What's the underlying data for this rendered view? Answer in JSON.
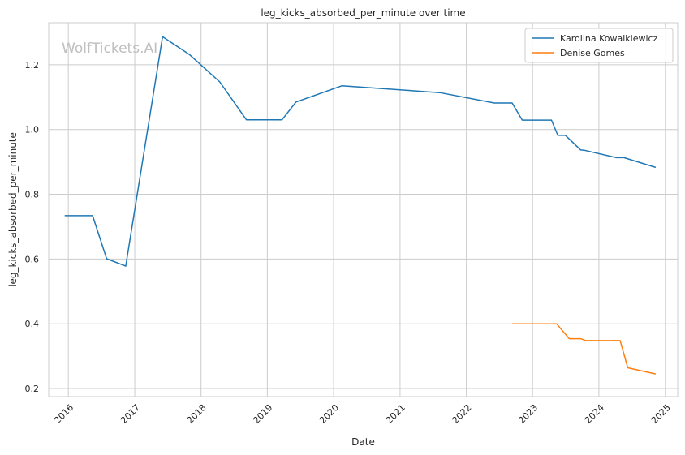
{
  "chart_data": {
    "type": "line",
    "title": "leg_kicks_absorbed_per_minute over time",
    "xlabel": "Date",
    "ylabel": "leg_kicks_absorbed_per_minute",
    "watermark": "WolfTickets.AI",
    "x_ticks": [
      "2016",
      "2017",
      "2018",
      "2019",
      "2020",
      "2021",
      "2022",
      "2023",
      "2024",
      "2025"
    ],
    "y_ticks": [
      "0.2",
      "0.4",
      "0.6",
      "0.8",
      "1.0",
      "1.2"
    ],
    "xlim": [
      "2015-09-15",
      "2025-03-10"
    ],
    "ylim": [
      0.175,
      1.33
    ],
    "grid": true,
    "legend_position": "top-right",
    "series": [
      {
        "name": "Karolina Kowalkiewicz",
        "color": "#1f77b4",
        "points": [
          [
            "2015-12-12",
            0.734
          ],
          [
            "2016-05-14",
            0.734
          ],
          [
            "2016-07-30",
            0.601
          ],
          [
            "2016-11-12",
            0.578
          ],
          [
            "2017-06-03",
            1.287
          ],
          [
            "2017-10-28",
            1.232
          ],
          [
            "2018-04-14",
            1.147
          ],
          [
            "2018-09-08",
            1.03
          ],
          [
            "2019-03-23",
            1.03
          ],
          [
            "2019-06-08",
            1.085
          ],
          [
            "2020-02-15",
            1.135
          ],
          [
            "2021-08-07",
            1.114
          ],
          [
            "2022-06-04",
            1.082
          ],
          [
            "2022-09-10",
            1.082
          ],
          [
            "2022-11-05",
            1.029
          ],
          [
            "2023-04-15",
            1.029
          ],
          [
            "2023-05-20",
            0.982
          ],
          [
            "2023-07-01",
            0.982
          ],
          [
            "2023-09-23",
            0.937
          ],
          [
            "2023-10-14",
            0.936
          ],
          [
            "2024-04-06",
            0.913
          ],
          [
            "2024-05-18",
            0.913
          ],
          [
            "2024-11-09",
            0.883
          ]
        ]
      },
      {
        "name": "Denise Gomes",
        "color": "#ff7f0e",
        "points": [
          [
            "2022-09-10",
            0.4
          ],
          [
            "2023-05-13",
            0.4
          ],
          [
            "2023-07-22",
            0.354
          ],
          [
            "2023-09-23",
            0.354
          ],
          [
            "2023-10-21",
            0.348
          ],
          [
            "2024-04-27",
            0.348
          ],
          [
            "2024-06-08",
            0.264
          ],
          [
            "2024-11-09",
            0.245
          ]
        ]
      }
    ]
  }
}
